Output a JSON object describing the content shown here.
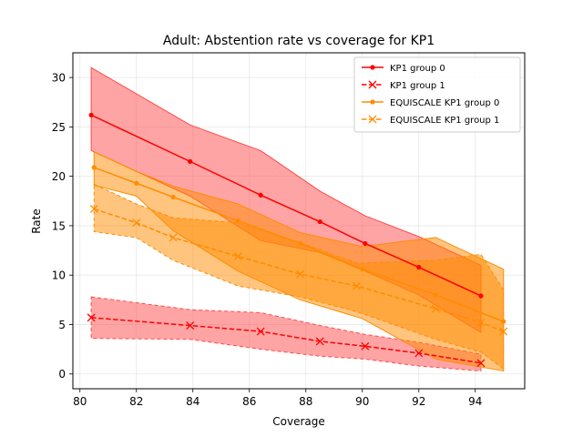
{
  "chart_data": {
    "type": "line",
    "title": "Adult: Abstention rate vs coverage for KP1",
    "xlabel": "Coverage",
    "ylabel": "Rate",
    "xlim": [
      79.75,
      95.75
    ],
    "ylim": [
      -1.5,
      32.5
    ],
    "xticks": [
      80,
      82,
      84,
      86,
      88,
      90,
      92,
      94
    ],
    "yticks": [
      0,
      5,
      10,
      15,
      20,
      25,
      30
    ],
    "grid": true,
    "legend_position": "top-right",
    "series": [
      {
        "name": "KP1 group 0",
        "color": "#ff0000",
        "linestyle": "solid",
        "marker": "dot",
        "x": [
          80.4,
          83.9,
          86.4,
          88.5,
          90.1,
          92.0,
          94.2
        ],
        "y": [
          26.2,
          21.5,
          18.1,
          15.4,
          13.2,
          10.8,
          7.9
        ],
        "band_upper": [
          31.0,
          25.2,
          22.6,
          18.5,
          16.0,
          13.9,
          11.0
        ],
        "band_lower": [
          22.6,
          18.0,
          13.5,
          12.3,
          10.4,
          8.0,
          4.2
        ],
        "band_color": "#ff4a4a"
      },
      {
        "name": "KP1 group 1",
        "color": "#ff0000",
        "linestyle": "dashed",
        "marker": "x",
        "x": [
          80.4,
          83.9,
          86.4,
          88.5,
          90.1,
          92.0,
          94.2
        ],
        "y": [
          5.7,
          4.9,
          4.3,
          3.3,
          2.8,
          2.1,
          1.1
        ],
        "band_upper": [
          7.8,
          6.5,
          6.2,
          4.9,
          4.0,
          3.2,
          2.0
        ],
        "band_lower": [
          3.6,
          3.5,
          2.5,
          1.8,
          1.5,
          0.8,
          0.3
        ],
        "band_color": "#ff4a4a"
      },
      {
        "name": "EQUISCALE KP1 group 0",
        "color": "#ff8c00",
        "linestyle": "solid",
        "marker": "dot",
        "x": [
          80.5,
          82.0,
          83.3,
          85.6,
          87.8,
          90.0,
          92.6,
          95.0
        ],
        "y": [
          20.9,
          19.3,
          17.9,
          15.5,
          13.2,
          10.6,
          8.0,
          5.3
        ],
        "band_upper": [
          22.5,
          20.5,
          19.0,
          17.2,
          14.3,
          12.9,
          13.8,
          10.6
        ],
        "band_lower": [
          19.1,
          18.0,
          14.5,
          10.4,
          7.5,
          5.6,
          1.5,
          0.3
        ],
        "band_color": "#ff8c00"
      },
      {
        "name": "EQUISCALE KP1 group 1",
        "color": "#ff8c00",
        "linestyle": "dashed",
        "marker": "x",
        "x": [
          80.5,
          82.0,
          83.3,
          85.6,
          87.8,
          89.8,
          92.6,
          94.2,
          95.0
        ],
        "y": [
          16.7,
          15.3,
          13.8,
          11.9,
          10.1,
          8.9,
          6.6,
          5.2,
          4.3
        ],
        "band_upper": [
          19.2,
          17.2,
          15.8,
          15.3,
          13.3,
          11.2,
          11.5,
          12.1,
          8.5
        ],
        "band_lower": [
          14.4,
          13.8,
          11.5,
          8.9,
          7.8,
          6.3,
          3.5,
          2.2,
          0.5
        ],
        "band_color": "#ff8c00"
      }
    ]
  }
}
